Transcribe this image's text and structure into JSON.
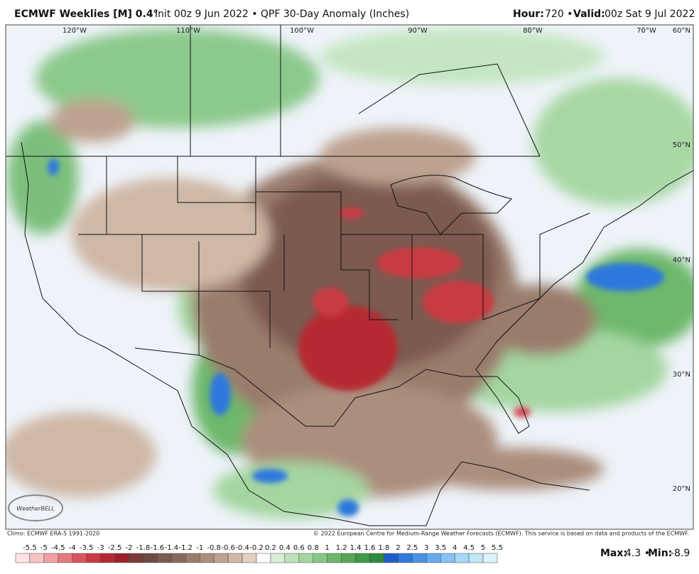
{
  "header": {
    "title_bold": "ECMWF Weeklies [M] 0.4°",
    "title_rest": "Init 00z 9 Jun 2022 • QPF 30-Day Anomaly (Inches)",
    "hour_label": "Hour:",
    "hour": "720 •",
    "valid_label": "Valid:",
    "valid": "00z Sat 9 Jul 2022"
  },
  "map": {
    "lon_labels": [
      "120°W",
      "110°W",
      "100°W",
      "90°W",
      "80°W",
      "70°W"
    ],
    "lat_labels": [
      "60°N",
      "50°N",
      "40°N",
      "30°N",
      "20°N"
    ],
    "watermark": "WeatherBELL"
  },
  "footer": {
    "climo": "Climo: ECMWF ERA-5 1991-2020",
    "copyright": "© 2022 European Centre for Medium-Range Weather Forecasts (ECMWF). This service is based on data and products of the ECMWF.",
    "max_label": "Max:",
    "max": "4.3 •",
    "min_label": "Min:",
    "min": "-8.9"
  },
  "colorbar": {
    "labels": [
      "-5.5",
      "-5",
      "-4.5",
      "-4",
      "-3.5",
      "-3",
      "-2.5",
      "-2",
      "-1.8",
      "-1.6",
      "-1.4",
      "-1.2",
      "-1",
      "-0.8",
      "-0.6",
      "-0.4",
      "-0.2",
      "0.2",
      "0.4",
      "0.6",
      "0.8",
      "1",
      "1.2",
      "1.4",
      "1.6",
      "1.8",
      "2",
      "2.5",
      "3",
      "3.5",
      "4",
      "4.5",
      "5",
      "5.5"
    ],
    "colors": [
      "#fde3e3",
      "#f9c4c6",
      "#f2a0a4",
      "#e57a80",
      "#d9555d",
      "#c93a43",
      "#b52a32",
      "#9c2128",
      "#7d3a36",
      "#6e4a44",
      "#7c5a50",
      "#8a6a5e",
      "#9a7b6c",
      "#ab8e7d",
      "#bda290",
      "#cfb8a6",
      "#e2d1c2",
      "#ffffff",
      "#d8efd6",
      "#bfe3bc",
      "#a4d6a1",
      "#88c886",
      "#6db86c",
      "#56a857",
      "#3f9a48",
      "#2e8a3c",
      "#1f5ec8",
      "#2f78dd",
      "#4a92e6",
      "#68aaee",
      "#86c2f3",
      "#a4d8f6",
      "#c0e8f8",
      "#dcf4fb"
    ]
  }
}
